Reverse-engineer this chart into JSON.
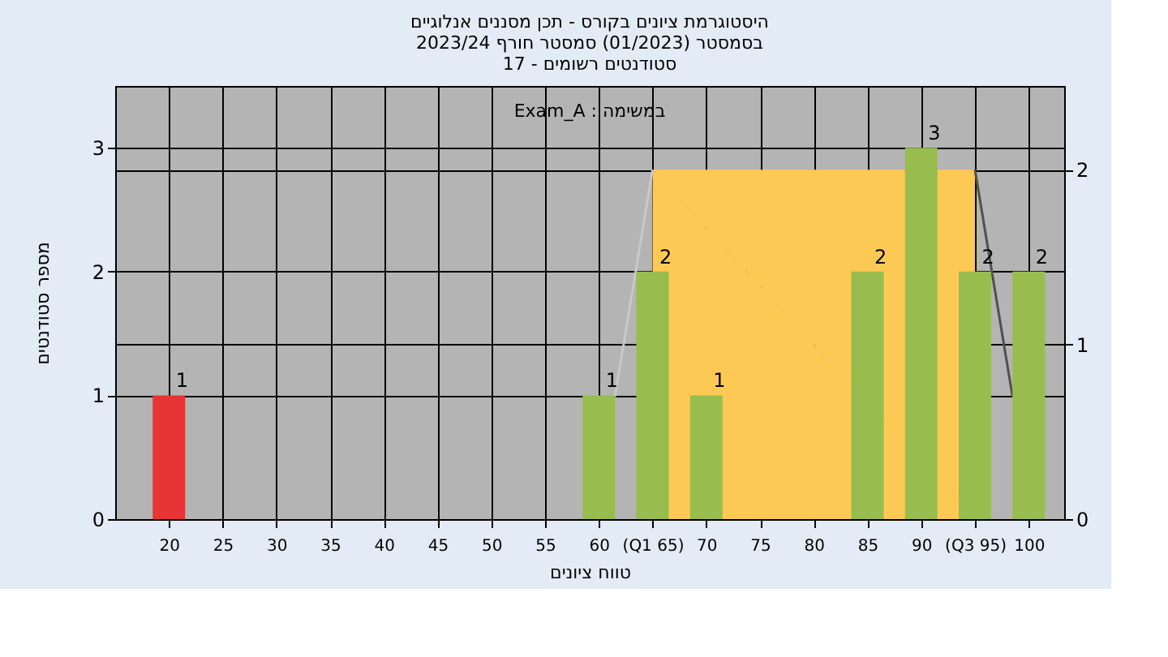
{
  "chart_data": {
    "type": "bar",
    "title": [
      "היסטוגרמת ציונים בקורס - תכן מסננים אנלוגיים",
      "בסמסטר (01/2023) סמסטר חורף 2023/24",
      "סטודנטים רשומים - 17"
    ],
    "xlabel": "טווח ציונים",
    "ylabel": "מספר סטודנטים",
    "annotations": [
      "Exam_A : במשימה"
    ],
    "xlim": [
      15,
      103.3
    ],
    "xticks": [
      20,
      25,
      30,
      35,
      40,
      45,
      50,
      55,
      60,
      {
        "value": 65,
        "label": "(Q1 65)"
      },
      70,
      75,
      80,
      85,
      90,
      {
        "value": 95,
        "label": "(Q3 95)"
      },
      100
    ],
    "ylim": [
      0,
      3.5
    ],
    "yticks": [
      0,
      1,
      2,
      3
    ],
    "y2lim": [
      0,
      2.48
    ],
    "y2ticks": [
      0,
      1,
      2
    ],
    "grid": true,
    "series": [
      {
        "type": "area",
        "axis": "y2",
        "color": "#fdc955",
        "x": [
          65,
          95
        ],
        "values": [
          2,
          2
        ]
      },
      {
        "type": "line",
        "axis": "y2",
        "color": "#c8c8c8",
        "x": [
          61.5,
          65
        ],
        "values": [
          0.7,
          2
        ]
      },
      {
        "type": "line",
        "axis": "y2",
        "color": "#505050",
        "x": [
          95,
          98.5
        ],
        "values": [
          2,
          0.7
        ]
      },
      {
        "x": [
          20,
          60,
          65,
          70,
          85,
          90,
          95,
          100
        ],
        "values": [
          1,
          1,
          2,
          1,
          2,
          3,
          2,
          2
        ],
        "value_labels": [
          "1",
          "1",
          "2",
          "1",
          "2",
          "3",
          "2",
          "2"
        ],
        "colors": [
          "#e83434",
          "#98bd4e",
          "#98bd4e",
          "#98bd4e",
          "#98bd4e",
          "#98bd4e",
          "#98bd4e",
          "#98bd4e"
        ]
      }
    ]
  }
}
